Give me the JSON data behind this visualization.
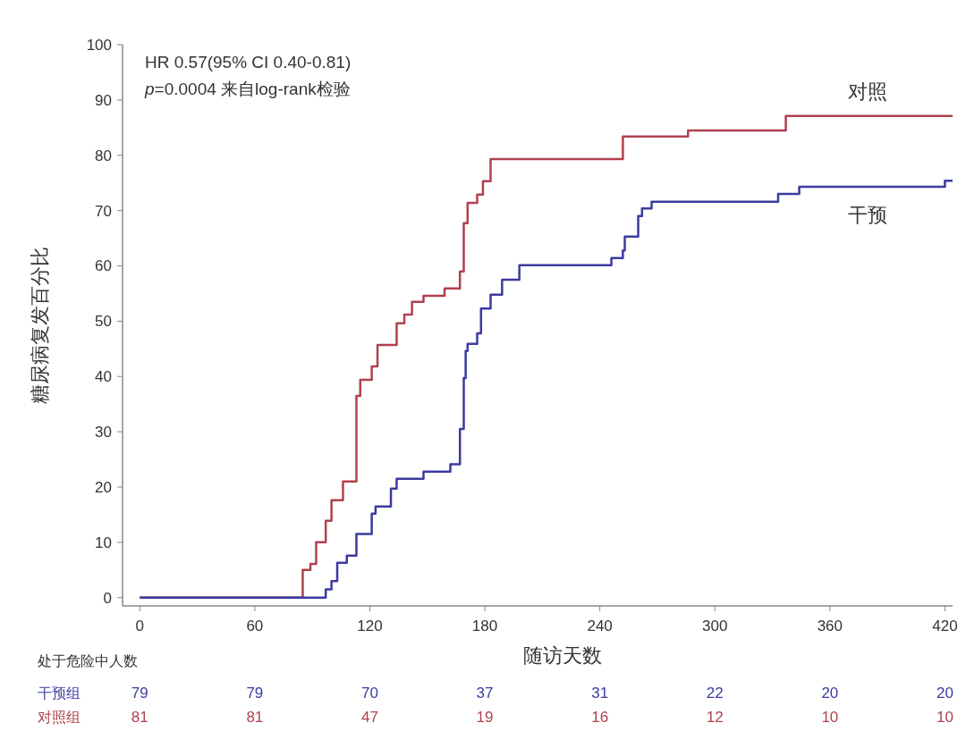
{
  "chart_data": {
    "type": "step",
    "ylabel": "糖尿病复发百分比",
    "xlabel": "随访天数",
    "xlim": [
      -9,
      424
    ],
    "ylim": [
      -1.5,
      100
    ],
    "xticks": [
      0,
      60,
      120,
      180,
      240,
      300,
      360,
      420
    ],
    "yticks": [
      0,
      10,
      20,
      30,
      40,
      50,
      60,
      70,
      80,
      90,
      100
    ],
    "grid": false,
    "legend": false,
    "marker": "none",
    "line_style": "solid",
    "series": [
      {
        "name": "对照",
        "color": "#b0404e",
        "x": [
          0,
          85,
          89,
          92,
          97,
          100,
          106,
          113,
          115,
          121,
          124,
          134,
          138,
          142,
          148,
          159,
          167,
          169,
          171,
          176,
          179,
          183,
          252,
          286,
          337,
          424
        ],
        "values": [
          0,
          5,
          6.1,
          10,
          13.9,
          17.6,
          21,
          36.5,
          39.4,
          41.8,
          45.7,
          49.6,
          51.2,
          53.5,
          54.6,
          55.9,
          59,
          67.7,
          71.4,
          72.9,
          75.3,
          79.3,
          83.4,
          84.5,
          87.1,
          87.1
        ]
      },
      {
        "name": "干预",
        "color": "#3b3ba0",
        "x": [
          0,
          97,
          100,
          103,
          108,
          113,
          121,
          123,
          131,
          134,
          148,
          162,
          167,
          169,
          170,
          171,
          176,
          178,
          183,
          189,
          198,
          246,
          252,
          253,
          260,
          262,
          267,
          333,
          344,
          420,
          424
        ],
        "values": [
          0,
          1.5,
          3,
          6.3,
          7.6,
          11.5,
          15.2,
          16.5,
          19.7,
          21.5,
          22.8,
          24.1,
          30.5,
          39.7,
          44.6,
          45.9,
          47.8,
          52.3,
          54.8,
          57.5,
          60.1,
          61.4,
          62.8,
          65.3,
          69,
          70.4,
          71.6,
          73,
          74.3,
          75.4,
          75.4
        ]
      }
    ],
    "annotations": [
      "HR 0.57(95% CI 0.40-0.81)",
      "*p*=0.0004 来自log-rank检验",
      "处于危险中人数",
      "干预组",
      "79",
      "79",
      "70",
      "37",
      "31",
      "22",
      "20",
      "20",
      "对照组",
      "81",
      "81",
      "47",
      "19",
      "16",
      "12",
      "10",
      "10"
    ]
  }
}
